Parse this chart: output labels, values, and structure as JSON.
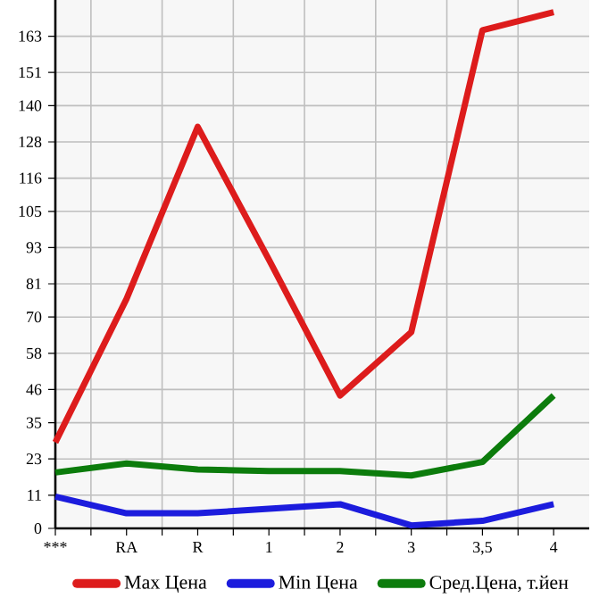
{
  "chart_data": {
    "type": "line",
    "categories": [
      "***",
      "RA",
      "R",
      "1",
      "2",
      "3",
      "3,5",
      "4"
    ],
    "series": [
      {
        "name": "Max Цена",
        "color": "#dd1c1c",
        "values": [
          28.5,
          76,
          133,
          89,
          44,
          65,
          165,
          171
        ]
      },
      {
        "name": "Min Цена",
        "color": "#1c1cdd",
        "values": [
          10.5,
          5,
          5,
          6.5,
          8,
          1,
          2.5,
          8
        ]
      },
      {
        "name": "Сред.Цена, т.йен",
        "color": "#0c7c0c",
        "values": [
          18.5,
          21.5,
          19.5,
          19,
          19,
          17.5,
          22,
          44
        ]
      }
    ],
    "ylim": [
      0,
      175
    ],
    "yticks": [
      0,
      11,
      23,
      35,
      46,
      58,
      70,
      81,
      93,
      105,
      116,
      128,
      140,
      151,
      163
    ],
    "grid": true,
    "legend": "bottom",
    "marker": "none",
    "line_style": "solid"
  }
}
